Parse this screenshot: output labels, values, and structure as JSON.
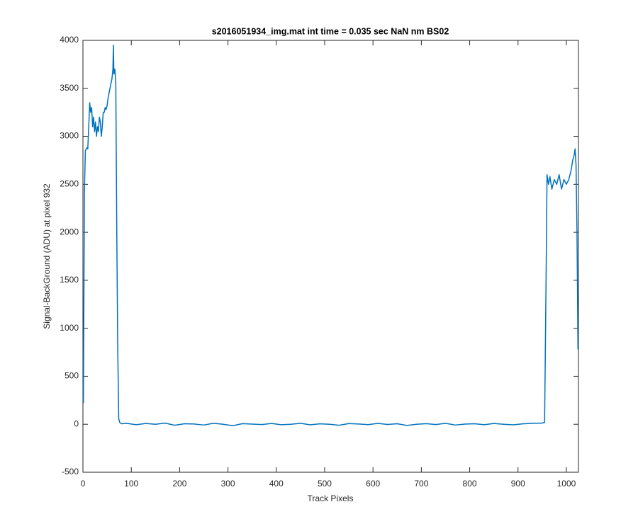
{
  "chart_data": {
    "type": "line",
    "title": "s2016051934_img.mat int time = 0.035 sec  NaN nm BS02",
    "x_label": "Track Pixels",
    "y_label": "Signal-BackGround (ADU) at pixel 932",
    "x": [
      1,
      3,
      5,
      8,
      10,
      12,
      14,
      16,
      18,
      20,
      22,
      24,
      26,
      28,
      30,
      32,
      34,
      36,
      38,
      40,
      42,
      44,
      46,
      48,
      50,
      52,
      54,
      56,
      58,
      60,
      62,
      63,
      64,
      66,
      68,
      70,
      72,
      74,
      76,
      78,
      80,
      90,
      110,
      130,
      150,
      170,
      190,
      210,
      230,
      250,
      270,
      290,
      310,
      330,
      350,
      370,
      390,
      410,
      430,
      450,
      470,
      490,
      510,
      530,
      550,
      570,
      590,
      610,
      630,
      650,
      670,
      690,
      710,
      730,
      750,
      770,
      790,
      810,
      830,
      850,
      870,
      890,
      910,
      930,
      950,
      955,
      958,
      960,
      963,
      966,
      970,
      975,
      980,
      985,
      990,
      995,
      1000,
      1005,
      1010,
      1013,
      1016,
      1018,
      1020,
      1022,
      1024
    ],
    "series": [
      {
        "name": "signal",
        "color": "#0072bd",
        "values": [
          220,
          2400,
          2850,
          2880,
          2870,
          3100,
          3350,
          3250,
          3300,
          3100,
          3200,
          3050,
          3150,
          3000,
          3100,
          3050,
          3200,
          3150,
          3000,
          3100,
          3250,
          3250,
          3300,
          3280,
          3320,
          3400,
          3450,
          3500,
          3550,
          3600,
          3700,
          3950,
          3650,
          3700,
          3550,
          2000,
          800,
          60,
          20,
          10,
          5,
          10,
          -5,
          8,
          0,
          12,
          -10,
          5,
          3,
          -8,
          10,
          0,
          -15,
          6,
          2,
          -3,
          8,
          -5,
          0,
          10,
          -6,
          4,
          0,
          -10,
          7,
          3,
          -4,
          9,
          -2,
          5,
          -12,
          0,
          6,
          -3,
          10,
          -8,
          2,
          5,
          -5,
          8,
          0,
          -6,
          4,
          10,
          12,
          20,
          1500,
          2600,
          2500,
          2580,
          2450,
          2550,
          2500,
          2600,
          2450,
          2550,
          2500,
          2550,
          2650,
          2750,
          2800,
          2870,
          2700,
          2000,
          780
        ]
      }
    ],
    "xlim": [
      0,
      1025
    ],
    "ylim": [
      -500,
      4000
    ],
    "xticks": [
      0,
      100,
      200,
      300,
      400,
      500,
      600,
      700,
      800,
      900,
      1000
    ],
    "yticks": [
      -500,
      0,
      500,
      1000,
      1500,
      2000,
      2500,
      3000,
      3500,
      4000
    ],
    "grid": false
  }
}
